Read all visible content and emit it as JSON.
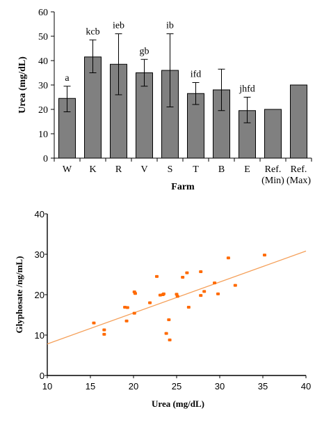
{
  "chart_data": [
    {
      "type": "bar",
      "xlabel": "Farm",
      "ylabel": "Urea (mg/dL)",
      "ylim": [
        0,
        60
      ],
      "yticks": [
        0,
        10,
        20,
        30,
        40,
        50,
        60
      ],
      "categories": [
        {
          "line1": "W",
          "line2": ""
        },
        {
          "line1": "K",
          "line2": ""
        },
        {
          "line1": "R",
          "line2": ""
        },
        {
          "line1": "V",
          "line2": ""
        },
        {
          "line1": "S",
          "line2": ""
        },
        {
          "line1": "T",
          "line2": ""
        },
        {
          "line1": "B",
          "line2": ""
        },
        {
          "line1": "E",
          "line2": ""
        },
        {
          "line1": "Ref.",
          "line2": "(Min)"
        },
        {
          "line1": "Ref.",
          "line2": "(Max)"
        }
      ],
      "values": [
        24.5,
        41.5,
        38.5,
        35,
        36,
        26.5,
        28,
        19.5,
        20,
        30
      ],
      "error_low": [
        19,
        35,
        26,
        29.5,
        21,
        22,
        19.5,
        14.5,
        null,
        null
      ],
      "error_high": [
        29.5,
        48.5,
        51,
        40.5,
        51,
        31,
        36.5,
        25,
        null,
        null
      ],
      "annotations": [
        "a",
        "kcb",
        "ieb",
        "gb",
        "ib",
        "ifd",
        "",
        "jhfd",
        "",
        ""
      ],
      "bar_color": "#808080",
      "grid": false
    },
    {
      "type": "scatter",
      "xlabel": "Urea (mg/dL)",
      "ylabel": "Glyphosate /ng/mL)",
      "xlim": [
        10,
        40
      ],
      "ylim": [
        0,
        40
      ],
      "xticks": [
        10,
        15,
        20,
        25,
        30,
        35,
        40
      ],
      "yticks": [
        0,
        10,
        20,
        30,
        40
      ],
      "points": [
        [
          15.4,
          13
        ],
        [
          16.6,
          11.3
        ],
        [
          16.6,
          10.2
        ],
        [
          19,
          16.9
        ],
        [
          19.3,
          16.8
        ],
        [
          19.2,
          13.5
        ],
        [
          20.1,
          15.4
        ],
        [
          20.2,
          20.3
        ],
        [
          20.1,
          20.7
        ],
        [
          21.9,
          18
        ],
        [
          22.7,
          24.5
        ],
        [
          23.1,
          19.9
        ],
        [
          23.4,
          20
        ],
        [
          23.5,
          20.2
        ],
        [
          23.8,
          10.4
        ],
        [
          24.1,
          13.8
        ],
        [
          24.2,
          8.8
        ],
        [
          25,
          20.1
        ],
        [
          25.1,
          19.6
        ],
        [
          25.7,
          24.3
        ],
        [
          26.2,
          25.4
        ],
        [
          26.4,
          16.9
        ],
        [
          27.8,
          25.7
        ],
        [
          27.8,
          19.8
        ],
        [
          28.2,
          20.8
        ],
        [
          29.4,
          22.9
        ],
        [
          29.8,
          20.2
        ],
        [
          31,
          29.1
        ],
        [
          31.8,
          22.3
        ],
        [
          35.2,
          29.8
        ]
      ],
      "trendline": {
        "x": [
          10,
          40
        ],
        "y": [
          7.8,
          30.8
        ]
      },
      "marker_color": "#ff6a00",
      "trend_color": "#f5a05a",
      "grid": false
    }
  ]
}
